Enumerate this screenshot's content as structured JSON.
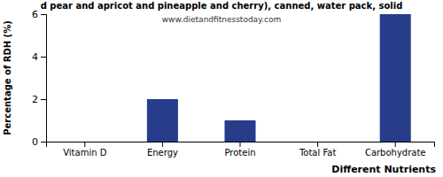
{
  "chart_data": {
    "type": "bar",
    "title": "d pear and apricot and pineapple and cherry), canned, water pack, solid",
    "subtitle": "www.dietandfitnesstoday.com",
    "x_label": "Different Nutrients",
    "y_label": "Percentage of RDH (%)",
    "categories": [
      "Vitamin D",
      "Energy",
      "Protein",
      "Total Fat",
      "Carbohydrate"
    ],
    "values": [
      0,
      2,
      1,
      0,
      6
    ],
    "color": "#283c8c",
    "ylim": [
      0,
      6
    ],
    "yticks": [
      0,
      2,
      4,
      6
    ],
    "grid": false
  }
}
